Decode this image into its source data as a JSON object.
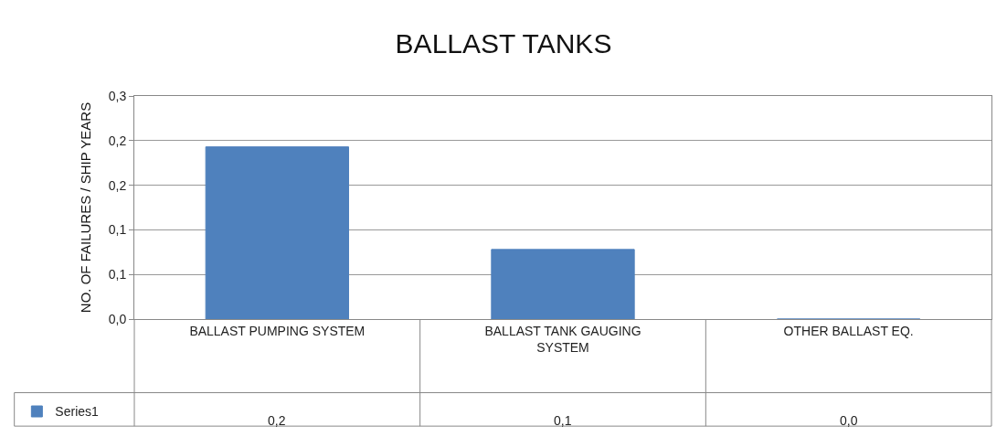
{
  "chart_data": {
    "type": "bar",
    "title": "BALLAST TANKS",
    "ylabel": "NO. OF FAILURES / SHIP YEARS",
    "categories": [
      "BALLAST PUMPING SYSTEM",
      "BALLAST TANK GAUGING SYSTEM",
      "OTHER BALLAST EQ."
    ],
    "series": [
      {
        "name": "Series1",
        "color": "#4f81bd",
        "values": [
          0.193,
          0.078,
          0
        ],
        "value_labels": [
          "0,2",
          "0,1",
          "0,0"
        ]
      }
    ],
    "ylim": [
      0,
      0.25
    ],
    "yticks": [
      {
        "value": 0,
        "label": "0,0"
      },
      {
        "value": 0.05,
        "label": "0,1"
      },
      {
        "value": 0.1,
        "label": "0,1"
      },
      {
        "value": 0.15,
        "label": "0,2"
      },
      {
        "value": 0.2,
        "label": "0,2"
      },
      {
        "value": 0.25,
        "label": "0,3"
      }
    ],
    "grid": "y",
    "legend": "bottom left"
  }
}
